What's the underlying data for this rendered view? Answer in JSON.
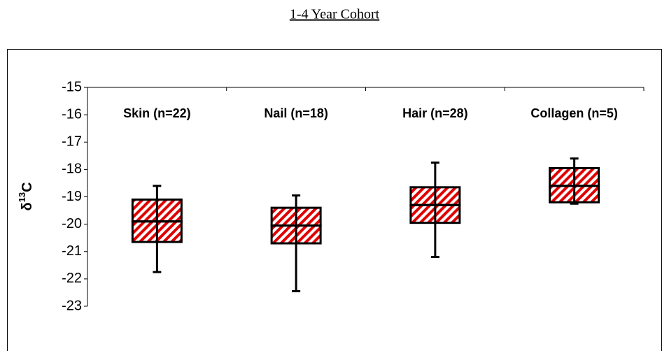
{
  "chart_data": {
    "type": "box",
    "title": "1-4 Year Cohort",
    "ylabel_parts": [
      "δ",
      "13",
      "C"
    ],
    "categories": [
      "Skin (n=22)",
      "Nail (n=18)",
      "Hair (n=28)",
      "Collagen (n=5)"
    ],
    "whisker_high": [
      -18.6,
      -18.95,
      -17.75,
      -17.6
    ],
    "q3": [
      -19.1,
      -19.4,
      -18.65,
      -17.95
    ],
    "median": [
      -19.9,
      -20.05,
      -19.3,
      -18.6
    ],
    "q1": [
      -20.65,
      -20.7,
      -19.95,
      -19.2
    ],
    "whisker_low": [
      -21.75,
      -22.45,
      -21.2,
      -19.25
    ],
    "color": "#e00000",
    "ylim": [
      -23,
      -15
    ],
    "yticks": [
      -15,
      -16,
      -17,
      -18,
      -19,
      -20,
      -21,
      -22,
      -23
    ]
  }
}
